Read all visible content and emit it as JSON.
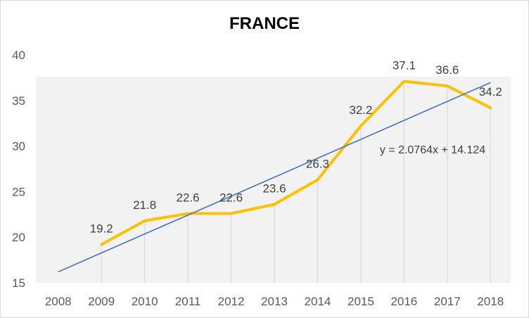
{
  "chart_data": {
    "type": "line",
    "title": "FRANCE",
    "xlabel": "",
    "ylabel": "",
    "categories": [
      "2008",
      "2009",
      "2010",
      "2011",
      "2012",
      "2013",
      "2014",
      "2015",
      "2016",
      "2017",
      "2018"
    ],
    "series": [
      {
        "values": [
          null,
          19.2,
          21.8,
          22.6,
          22.6,
          23.6,
          26.3,
          32.2,
          37.1,
          36.6,
          34.2
        ],
        "color": "#FFC000",
        "data_labels": [
          "",
          "19.2",
          "21.8",
          "22.6",
          "22.6",
          "23.6",
          "26.3",
          "32.2",
          "37.1",
          "36.6",
          "34.2"
        ]
      }
    ],
    "trendline": {
      "type": "linear",
      "equation": "y = 2.0764x + 14.124",
      "slope": 2.0764,
      "intercept": 14.124,
      "color": "#4472C4"
    },
    "ylim": [
      15,
      40
    ],
    "yticks": [
      "15",
      "20",
      "25",
      "30",
      "35",
      "40"
    ],
    "grid": "vertical dropdown lines",
    "plot_band_color": "#f2f2f2",
    "legend": "none"
  }
}
